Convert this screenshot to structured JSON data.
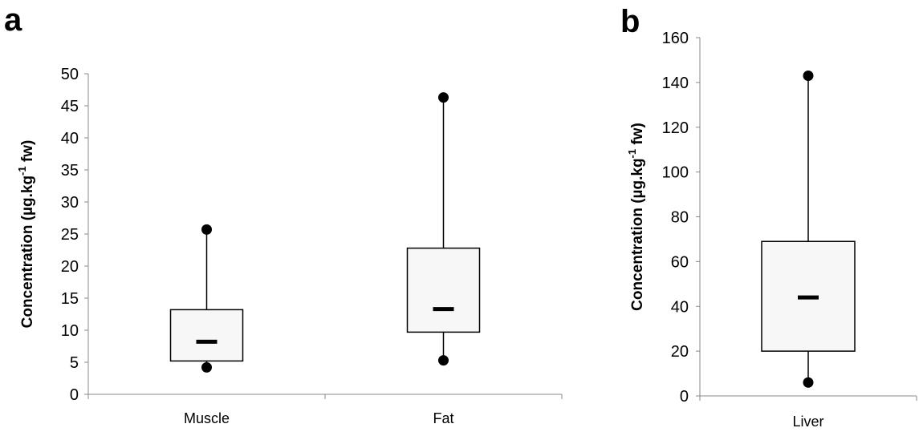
{
  "chart_data": [
    {
      "type": "box",
      "panel_label": "a",
      "ylabel": {
        "pre": "Concentration (µg.kg",
        "sup": "-1",
        "post": " fw)"
      },
      "ylim": [
        0,
        50
      ],
      "yticks": [
        0,
        5,
        10,
        15,
        20,
        25,
        30,
        35,
        40,
        45,
        50
      ],
      "categories": [
        "Muscle",
        "Fat"
      ],
      "boxes": [
        {
          "category": "Muscle",
          "min": 4.2,
          "q1": 5.2,
          "median": 8.2,
          "q3": 13.2,
          "max": 25.7
        },
        {
          "category": "Fat",
          "min": 5.3,
          "q1": 9.7,
          "median": 13.3,
          "q3": 22.8,
          "max": 46.3
        }
      ],
      "grid": false
    },
    {
      "type": "box",
      "panel_label": "b",
      "ylabel": {
        "pre": "Concentration (µg.kg",
        "sup": "-1",
        "post": " fw)"
      },
      "ylim": [
        0,
        160
      ],
      "yticks": [
        0,
        20,
        40,
        60,
        80,
        100,
        120,
        140,
        160
      ],
      "categories": [
        "Liver"
      ],
      "boxes": [
        {
          "category": "Liver",
          "min": 6,
          "q1": 20,
          "median": 44,
          "q3": 69,
          "max": 143
        }
      ],
      "grid": false
    }
  ],
  "colors": {
    "box_fill": "#f7f7f7",
    "stroke": "#000000",
    "axis": "#888888"
  }
}
